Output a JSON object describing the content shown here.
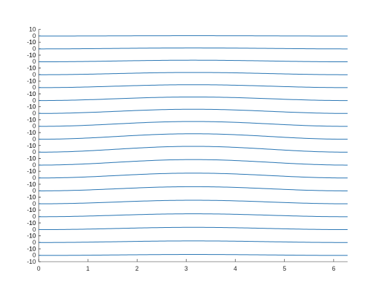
{
  "chart_data": {
    "type": "line",
    "description_layout": "stacked small-multiple strips sharing one x axis",
    "x_range": [
      0,
      6.2832
    ],
    "x_ticks": [
      "0",
      "1",
      "2",
      "3",
      "4",
      "5",
      "6"
    ],
    "x_tick_values": [
      0,
      1,
      2,
      3,
      4,
      5,
      6
    ],
    "strip_count": 18,
    "strip_ylim": [
      -10,
      10
    ],
    "strip_tick_values": [
      -10,
      0,
      10
    ],
    "strip_tick_labels": [
      "-10",
      "0",
      "10"
    ],
    "grid": false,
    "legend": "none",
    "line_color": "#1f6fb0",
    "series_function": "baseline + amplitude * (1 - cos(x)) / 2",
    "series": [
      {
        "amplitude": 0.5,
        "baseline": -0.3
      },
      {
        "amplitude": 1.5,
        "baseline": -0.3
      },
      {
        "amplitude": 2.5,
        "baseline": -0.3
      },
      {
        "amplitude": 3.5,
        "baseline": -0.3
      },
      {
        "amplitude": 4.5,
        "baseline": -0.3
      },
      {
        "amplitude": 5.5,
        "baseline": -0.3
      },
      {
        "amplitude": 6.5,
        "baseline": -0.3
      },
      {
        "amplitude": 7.5,
        "baseline": -0.3
      },
      {
        "amplitude": 8.5,
        "baseline": -0.3
      },
      {
        "amplitude": 9.0,
        "baseline": -0.3
      },
      {
        "amplitude": 8.5,
        "baseline": -0.3
      },
      {
        "amplitude": 7.5,
        "baseline": -0.3
      },
      {
        "amplitude": 6.5,
        "baseline": -0.3
      },
      {
        "amplitude": 5.5,
        "baseline": -0.3
      },
      {
        "amplitude": 4.5,
        "baseline": -0.3
      },
      {
        "amplitude": 3.5,
        "baseline": -0.3
      },
      {
        "amplitude": 2.5,
        "baseline": -0.3
      },
      {
        "amplitude": 1.5,
        "baseline": -0.3
      }
    ]
  }
}
